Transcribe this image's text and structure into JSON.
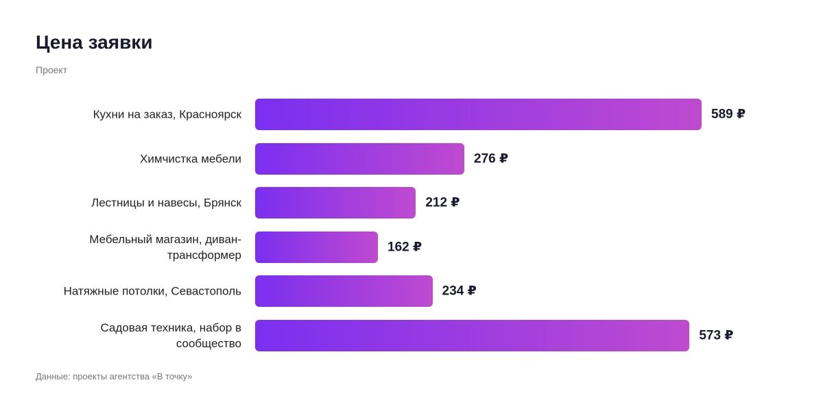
{
  "chart_data": {
    "type": "bar",
    "orientation": "horizontal",
    "title": "Цена заявки",
    "subtitle": "Проект",
    "categories": [
      "Кухни на заказ, Красноярск",
      "Химчистка мебели",
      "Лестницы и навесы, Брянск",
      "Мебельный магазин, диван-\nтрансформер",
      "Натяжные потолки, Севастополь",
      "Садовая техника, набор в\nсообщество"
    ],
    "values": [
      589,
      276,
      212,
      162,
      234,
      573
    ],
    "value_labels": [
      "589 ₽",
      "276 ₽",
      "212 ₽",
      "162 ₽",
      "234 ₽",
      "573 ₽"
    ],
    "color": [
      "#7b2ff0",
      "#bf4ad0"
    ],
    "note": "Данные: проекты агентства «В точку»"
  }
}
